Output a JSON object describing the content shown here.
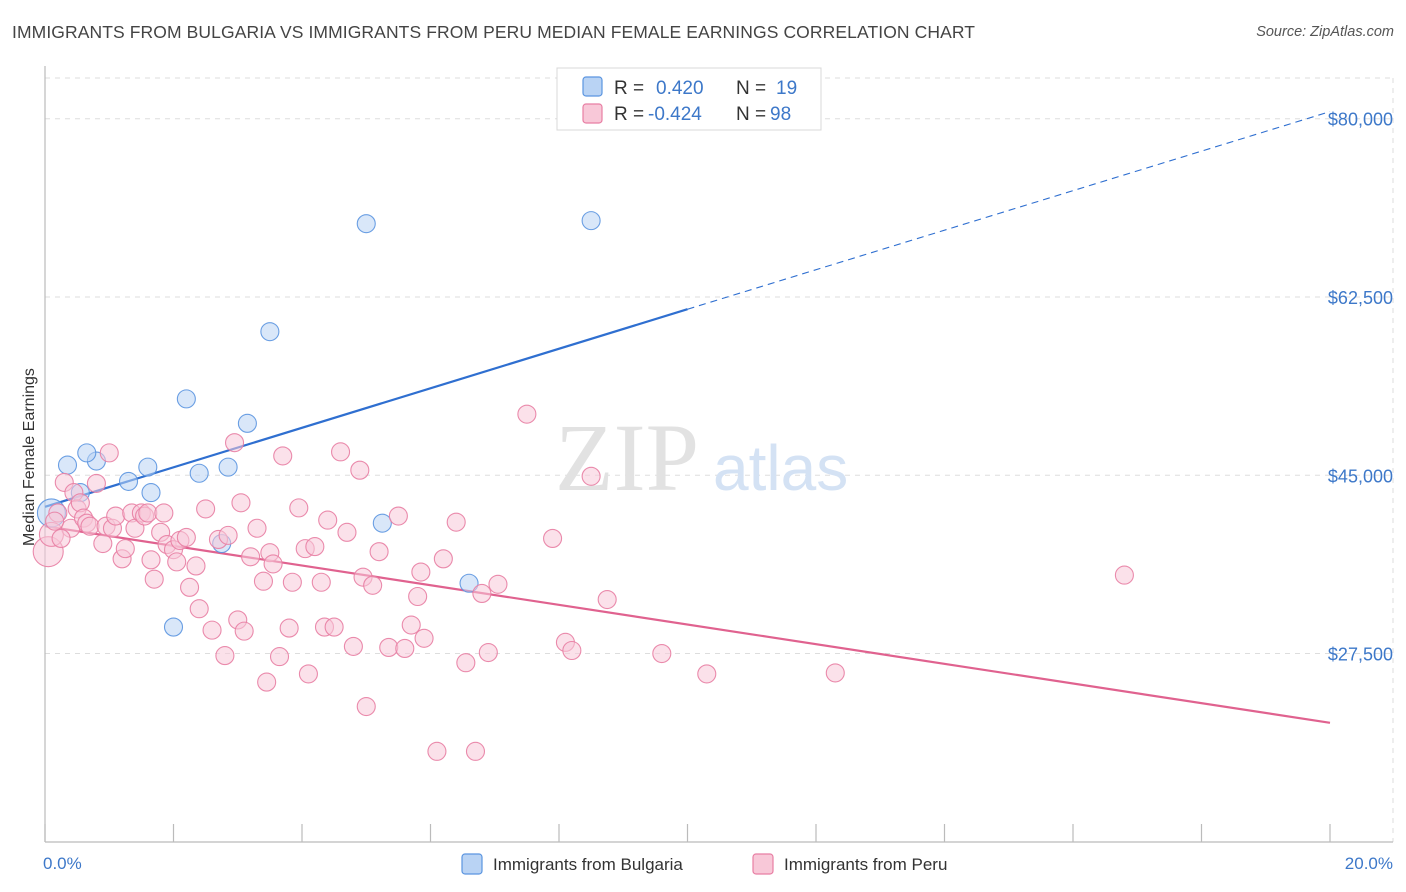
{
  "title": "IMMIGRANTS FROM BULGARIA VS IMMIGRANTS FROM PERU MEDIAN FEMALE EARNINGS CORRELATION CHART",
  "source": "Source: ZipAtlas.com",
  "watermark": {
    "zip": "ZIP",
    "atlas": "atlas"
  },
  "colors": {
    "blue": "#5b95e0",
    "blue_fill": "#b9d3f4",
    "blue_line": "#2f6fd0",
    "pink": "#e87ea3",
    "pink_fill": "#f8c8d8",
    "pink_line": "#e0628f",
    "tick": "#3d78c9",
    "grid": "#dddddd"
  },
  "legend": {
    "rows": [
      {
        "r_label": "R =",
        "r_value": "0.420",
        "n_label": "N =",
        "n_value": "19"
      },
      {
        "r_label": "R =",
        "r_value": "-0.424",
        "n_label": "N =",
        "n_value": "98"
      }
    ]
  },
  "chart_data": {
    "type": "scatter",
    "title": "IMMIGRANTS FROM BULGARIA VS IMMIGRANTS FROM PERU MEDIAN FEMALE EARNINGS CORRELATION CHART",
    "xlabel": "",
    "ylabel": "Median Female Earnings",
    "xlim": [
      0,
      20
    ],
    "ylim": [
      9000,
      84000
    ],
    "x_tick_labels": [
      "0.0%",
      "20.0%"
    ],
    "y_ticks": [
      27500,
      45000,
      62500,
      80000
    ],
    "y_tick_labels": [
      "$27,500",
      "$45,000",
      "$62,500",
      "$80,000"
    ],
    "grid": true,
    "legend_position": "top-center",
    "series": [
      {
        "name": "Immigrants from Bulgaria",
        "color": "blue",
        "r": 0.42,
        "n": 19,
        "trend": {
          "x0": 0,
          "y0": 41900,
          "x1": 10,
          "y1": 61300,
          "extend_to_x": 20,
          "extend_to_y": 80700
        },
        "points": [
          [
            0.1,
            41300,
            14
          ],
          [
            0.35,
            46000,
            9
          ],
          [
            0.8,
            46400,
            9
          ],
          [
            0.65,
            47200,
            9
          ],
          [
            1.3,
            44400,
            9
          ],
          [
            1.65,
            43300,
            9
          ],
          [
            1.6,
            45800,
            9
          ],
          [
            2.2,
            52500,
            9
          ],
          [
            2.4,
            45200,
            9
          ],
          [
            2.85,
            45800,
            9
          ],
          [
            3.15,
            50100,
            9
          ],
          [
            3.5,
            59100,
            9
          ],
          [
            5.0,
            69700,
            9
          ],
          [
            8.5,
            70000,
            9
          ],
          [
            5.25,
            40300,
            9
          ],
          [
            6.6,
            34400,
            9
          ],
          [
            2.0,
            30100,
            9
          ],
          [
            0.55,
            43300,
            9
          ],
          [
            2.75,
            38300,
            9
          ]
        ]
      },
      {
        "name": "Immigrants from Peru",
        "color": "pink",
        "r": -0.424,
        "n": 98,
        "trend": {
          "x0": 0,
          "y0": 40000,
          "x1": 20,
          "y1": 20700
        },
        "points": [
          [
            0.05,
            37500,
            15
          ],
          [
            0.1,
            39200,
            12
          ],
          [
            0.2,
            41300,
            9
          ],
          [
            0.3,
            44300,
            9
          ],
          [
            0.4,
            39800,
            9
          ],
          [
            0.45,
            43300,
            9
          ],
          [
            0.5,
            41700,
            9
          ],
          [
            0.55,
            42300,
            9
          ],
          [
            0.6,
            40800,
            9
          ],
          [
            0.65,
            40300,
            9
          ],
          [
            0.7,
            40000,
            9
          ],
          [
            0.8,
            44200,
            9
          ],
          [
            0.9,
            38300,
            9
          ],
          [
            0.95,
            40000,
            9
          ],
          [
            1.0,
            47200,
            9
          ],
          [
            1.05,
            39800,
            9
          ],
          [
            1.1,
            41000,
            9
          ],
          [
            1.2,
            36800,
            9
          ],
          [
            1.25,
            37800,
            9
          ],
          [
            1.35,
            41300,
            9
          ],
          [
            1.4,
            39800,
            9
          ],
          [
            1.5,
            41300,
            9
          ],
          [
            1.55,
            41000,
            9
          ],
          [
            1.6,
            41300,
            9
          ],
          [
            1.65,
            36700,
            9
          ],
          [
            1.7,
            34800,
            9
          ],
          [
            1.8,
            39400,
            9
          ],
          [
            1.85,
            41300,
            9
          ],
          [
            1.9,
            38200,
            9
          ],
          [
            2.0,
            37700,
            9
          ],
          [
            2.05,
            36500,
            9
          ],
          [
            2.1,
            38600,
            9
          ],
          [
            2.2,
            38900,
            9
          ],
          [
            2.25,
            34000,
            9
          ],
          [
            2.35,
            36100,
            9
          ],
          [
            2.4,
            31900,
            9
          ],
          [
            2.5,
            41700,
            9
          ],
          [
            2.6,
            29800,
            9
          ],
          [
            2.7,
            38700,
            9
          ],
          [
            2.8,
            27300,
            9
          ],
          [
            2.85,
            39100,
            9
          ],
          [
            2.95,
            48200,
            9
          ],
          [
            3.0,
            30800,
            9
          ],
          [
            3.05,
            42300,
            9
          ],
          [
            3.1,
            29700,
            9
          ],
          [
            3.2,
            37000,
            9
          ],
          [
            3.3,
            39800,
            9
          ],
          [
            3.4,
            34600,
            9
          ],
          [
            3.45,
            24700,
            9
          ],
          [
            3.5,
            37400,
            9
          ],
          [
            3.55,
            36300,
            9
          ],
          [
            3.65,
            27200,
            9
          ],
          [
            3.7,
            46900,
            9
          ],
          [
            3.8,
            30000,
            9
          ],
          [
            3.85,
            34500,
            9
          ],
          [
            3.95,
            41800,
            9
          ],
          [
            4.05,
            37800,
            9
          ],
          [
            4.1,
            25500,
            9
          ],
          [
            4.2,
            38000,
            9
          ],
          [
            4.3,
            34500,
            9
          ],
          [
            4.35,
            30100,
            9
          ],
          [
            4.4,
            40600,
            9
          ],
          [
            4.5,
            30100,
            9
          ],
          [
            4.6,
            47300,
            9
          ],
          [
            4.7,
            39400,
            9
          ],
          [
            4.8,
            28200,
            9
          ],
          [
            4.9,
            45500,
            9
          ],
          [
            4.95,
            35000,
            9
          ],
          [
            5.0,
            22300,
            9
          ],
          [
            5.1,
            34200,
            9
          ],
          [
            5.2,
            37500,
            9
          ],
          [
            5.35,
            28100,
            9
          ],
          [
            5.5,
            41000,
            9
          ],
          [
            5.6,
            28000,
            9
          ],
          [
            5.7,
            30300,
            9
          ],
          [
            5.8,
            33100,
            9
          ],
          [
            5.85,
            35500,
            9
          ],
          [
            5.9,
            29000,
            9
          ],
          [
            6.1,
            17900,
            9
          ],
          [
            6.2,
            36800,
            9
          ],
          [
            6.4,
            40400,
            9
          ],
          [
            6.55,
            26600,
            9
          ],
          [
            6.7,
            17900,
            9
          ],
          [
            6.8,
            33400,
            9
          ],
          [
            6.9,
            27600,
            9
          ],
          [
            7.05,
            34300,
            9
          ],
          [
            7.5,
            51000,
            9
          ],
          [
            7.9,
            38800,
            9
          ],
          [
            8.1,
            28600,
            9
          ],
          [
            8.2,
            27800,
            9
          ],
          [
            8.5,
            44900,
            9
          ],
          [
            8.75,
            32800,
            9
          ],
          [
            9.6,
            27500,
            9
          ],
          [
            10.3,
            25500,
            9
          ],
          [
            12.3,
            25600,
            9
          ],
          [
            16.8,
            35200,
            9
          ],
          [
            0.15,
            40500,
            9
          ],
          [
            0.25,
            38800,
            9
          ]
        ]
      }
    ]
  }
}
